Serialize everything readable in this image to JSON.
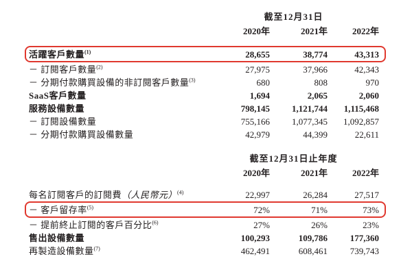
{
  "colors": {
    "highlight_border": "#e0382e",
    "text": "#242021",
    "background": "#ffffff"
  },
  "tables": [
    {
      "period_header": "截至12月31日",
      "years": [
        "2020年",
        "2021年",
        "2022年"
      ],
      "rows": [
        {
          "label": "活躍客戶數量",
          "sup": "(1)",
          "values": [
            "28,655",
            "38,774",
            "43,313"
          ],
          "bold": true,
          "highlight": true
        },
        {
          "label": "－ 訂閱客戶數量",
          "sup": "(2)",
          "values": [
            "27,975",
            "37,966",
            "42,343"
          ],
          "bold": false,
          "highlight": false
        },
        {
          "label": "－ 分期付款購買設備的非訂閱客戶數量",
          "sup": "(3)",
          "values": [
            "680",
            "808",
            "970"
          ],
          "bold": false,
          "highlight": false
        },
        {
          "label": "SaaS客戶數量",
          "sup": "",
          "values": [
            "1,694",
            "2,065",
            "2,060"
          ],
          "bold": true,
          "highlight": false
        },
        {
          "label": "服務設備數量",
          "sup": "",
          "values": [
            "798,145",
            "1,121,744",
            "1,115,468"
          ],
          "bold": true,
          "highlight": false
        },
        {
          "label": "－ 訂閱設備數量",
          "sup": "",
          "values": [
            "755,166",
            "1,077,345",
            "1,092,857"
          ],
          "bold": false,
          "highlight": false
        },
        {
          "label": "－ 分期付款購買設備數量",
          "sup": "",
          "values": [
            "42,979",
            "44,399",
            "22,611"
          ],
          "bold": false,
          "highlight": false
        }
      ]
    },
    {
      "period_header": "截至12月31日止年度",
      "years": [
        "2020年",
        "2021年",
        "2022年"
      ],
      "rows": [
        {
          "label": "每名訂閱客戶的訂閱費",
          "italic": "（人民幣元）",
          "sup": "(4)",
          "values": [
            "22,997",
            "26,284",
            "27,517"
          ],
          "bold": false,
          "highlight": false
        },
        {
          "label": "－ 客戶留存率",
          "sup": "(5)",
          "values": [
            "72%",
            "71%",
            "73%"
          ],
          "bold": false,
          "highlight": true
        },
        {
          "label": "－ 提前終止訂閱的客戶百分比",
          "sup": "(6)",
          "values": [
            "27%",
            "26%",
            "23%"
          ],
          "bold": false,
          "highlight": false
        },
        {
          "label": "售出設備數量",
          "sup": "",
          "values": [
            "100,293",
            "109,786",
            "177,360"
          ],
          "bold": true,
          "highlight": false
        },
        {
          "label": "再製造設備數量",
          "sup": "(7)",
          "values": [
            "462,491",
            "608,461",
            "739,743"
          ],
          "bold": false,
          "highlight": false
        }
      ]
    }
  ]
}
